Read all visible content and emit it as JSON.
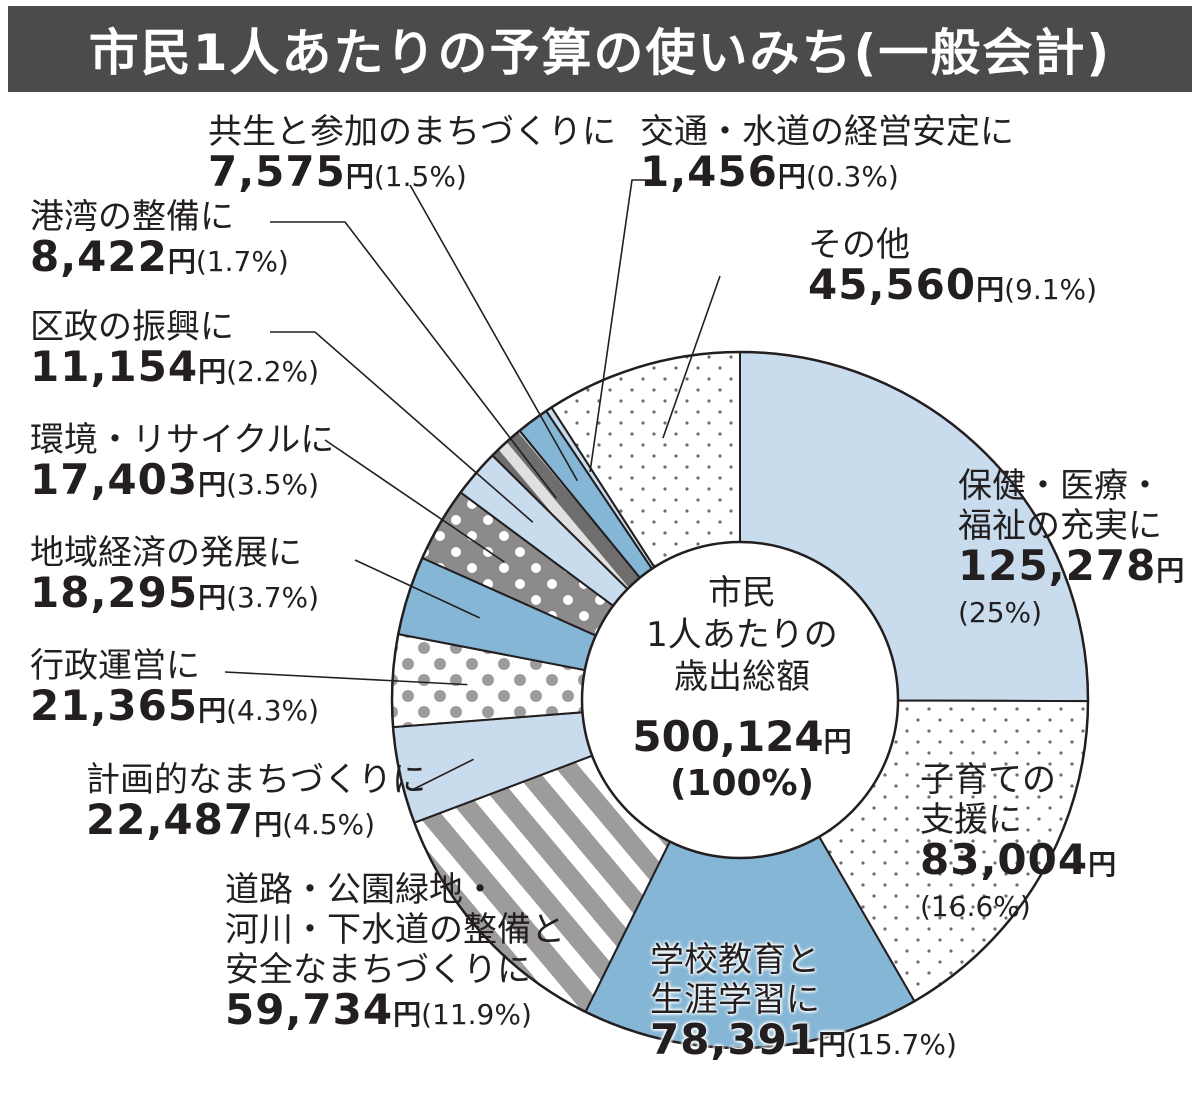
{
  "title": "市民1人あたりの予算の使いみち(一般会計)",
  "center": {
    "line1": "市民",
    "line2": "1人あたりの",
    "line3": "歳出総額",
    "total": "500,124",
    "unit": "円",
    "pct": "(100%)"
  },
  "chart_data": {
    "type": "pie",
    "style": "donut",
    "unit": "円",
    "categories": [
      "保健・医療・福祉の充実に",
      "子育ての支援に",
      "学校教育と生涯学習に",
      "道路・公園緑地・河川・下水道の整備と安全なまちづくりに",
      "計画的なまちづくりに",
      "行政運営に",
      "地域経済の発展に",
      "環境・リサイクルに",
      "区政の振興に",
      "港湾の整備に",
      "共生と参加のまちづくりに",
      "交通・水道の経営安定に",
      "その他"
    ],
    "values": [
      125278,
      83004,
      78391,
      59734,
      22487,
      21365,
      18295,
      17403,
      11154,
      8422,
      7575,
      1456,
      45560
    ],
    "percentages": [
      25,
      16.6,
      15.7,
      11.9,
      4.5,
      4.3,
      3.7,
      3.5,
      2.2,
      1.7,
      1.5,
      0.3,
      9.1
    ],
    "total": 500124,
    "legend": "none",
    "colors": {
      "light_blue": "#c9dced",
      "mid_blue": "#85b6d6",
      "gray": "#9d9b9c",
      "dark_gray": "#6f6d6e",
      "outline": "#231f20"
    },
    "patterns": [
      "light-blue",
      "white-dots",
      "mid-blue",
      "gray-white-stripes",
      "light-blue",
      "white-gray-dots",
      "mid-blue",
      "gray-white-dots",
      "light-blue",
      "gray-white-stripes",
      "mid-blue",
      "light-blue",
      "white-dots"
    ]
  },
  "labels": [
    {
      "lines": [
        "保健・医療・",
        "福祉の充実に"
      ],
      "value": "125,278",
      "unit": "円",
      "pct": "(25%)"
    },
    {
      "lines": [
        "子育ての",
        "支援に"
      ],
      "value": "83,004",
      "unit": "円",
      "pct": "(16.6%)"
    },
    {
      "lines": [
        "学校教育と",
        "生涯学習に"
      ],
      "value": "78,391",
      "unit": "円",
      "pct": "(15.7%)"
    },
    {
      "lines": [
        "道路・公園緑地・",
        "河川・下水道の整備と",
        "安全なまちづくりに"
      ],
      "value": "59,734",
      "unit": "円",
      "pct": "(11.9%)"
    },
    {
      "lines": [
        "計画的なまちづくりに"
      ],
      "value": "22,487",
      "unit": "円",
      "pct": "(4.5%)"
    },
    {
      "lines": [
        "行政運営に"
      ],
      "value": "21,365",
      "unit": "円",
      "pct": "(4.3%)"
    },
    {
      "lines": [
        "地域経済の発展に"
      ],
      "value": "18,295",
      "unit": "円",
      "pct": "(3.7%)"
    },
    {
      "lines": [
        "環境・リサイクルに"
      ],
      "value": "17,403",
      "unit": "円",
      "pct": "(3.5%)"
    },
    {
      "lines": [
        "区政の振興に"
      ],
      "value": "11,154",
      "unit": "円",
      "pct": "(2.2%)"
    },
    {
      "lines": [
        "港湾の整備に"
      ],
      "value": "8,422",
      "unit": "円",
      "pct": "(1.7%)"
    },
    {
      "lines": [
        "共生と参加のまちづくりに"
      ],
      "value": "7,575",
      "unit": "円",
      "pct": "(1.5%)"
    },
    {
      "lines": [
        "交通・水道の経営安定に"
      ],
      "value": "1,456",
      "unit": "円",
      "pct": "(0.3%)"
    },
    {
      "lines": [
        "その他"
      ],
      "value": "45,560",
      "unit": "円",
      "pct": "(9.1%)"
    }
  ]
}
